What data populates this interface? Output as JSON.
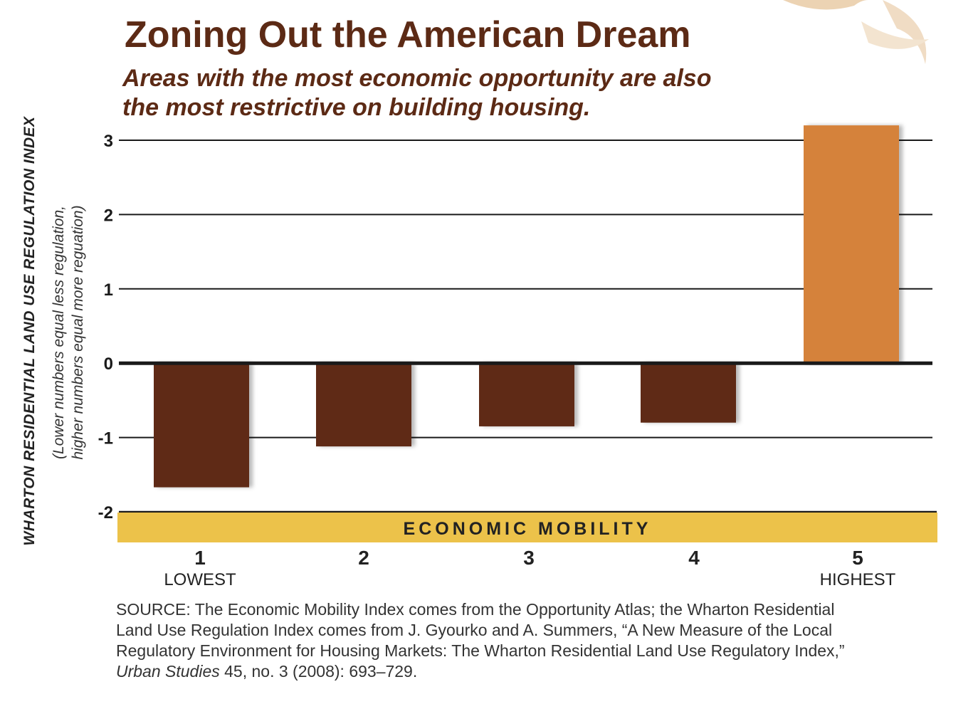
{
  "chart_data": {
    "type": "bar",
    "title": "Zoning Out the American Dream",
    "subtitle_lines": [
      "Areas with the most economic opportunity are also",
      "the most restrictive on building housing."
    ],
    "ylabel": "WHARTON RESIDENTIAL LAND USE REGULATION INDEX",
    "ylabel_sub_lines": [
      "(Lower numbers equal less regulation,",
      "higher numbers equal more reguation)"
    ],
    "xlabel": "ECONOMIC MOBILITY",
    "categories": [
      "1",
      "2",
      "3",
      "4",
      "5"
    ],
    "category_sublabels": [
      "LOWEST",
      "",
      "",
      "",
      "HIGHEST"
    ],
    "values": [
      -1.67,
      -1.12,
      -0.85,
      -0.8,
      3.2
    ],
    "ylim": [
      -2,
      3
    ],
    "yticks": [
      "3",
      "2",
      "1",
      "0",
      "-1",
      "-2"
    ],
    "ytick_values": [
      3,
      2,
      1,
      0,
      -1,
      -2
    ],
    "grid": true,
    "colors": {
      "negative_bar": "#5e2b18",
      "highlight_bar": "#d5823b",
      "band": "#ecc24a",
      "title": "#5c2a15"
    }
  },
  "source": {
    "line1": "SOURCE: The Economic Mobility Index comes from the Opportunity Atlas; the Wharton Residential",
    "line2": "Land Use Regulation Index comes from J. Gyourko and A. Summers, “A New Measure of the Local",
    "line3": "Regulatory Environment for Housing Markets: The Wharton Residential Land Use Regulatory Index,”",
    "journal": "Urban Studies",
    "citation": " 45, no. 3 (2008): 693–729."
  }
}
